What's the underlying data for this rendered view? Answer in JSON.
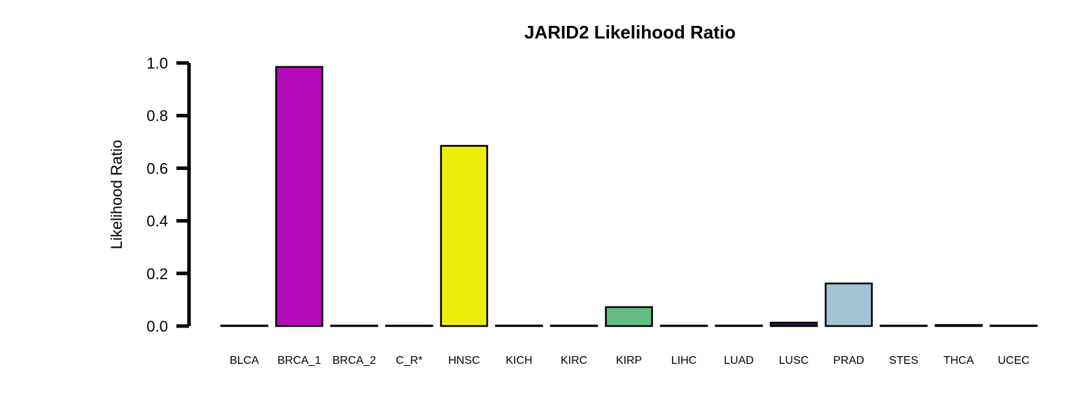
{
  "chart_data": {
    "type": "bar",
    "title": "JARID2 Likelihood Ratio",
    "xlabel": "",
    "ylabel": "Likelihood Ratio",
    "ylim": [
      0,
      1.0
    ],
    "yticks": [
      "0.0",
      "0.2",
      "0.4",
      "0.6",
      "0.8",
      "1.0"
    ],
    "grid": false,
    "legend": "none",
    "categories": [
      "BLCA",
      "BRCA_1",
      "BRCA_2",
      "C_R*",
      "HNSC",
      "KICH",
      "KIRC",
      "KIRP",
      "LIHC",
      "LUAD",
      "LUSC",
      "PRAD",
      "STES",
      "THCA",
      "UCEC"
    ],
    "values": [
      0.002,
      0.985,
      0.001,
      0.001,
      0.685,
      0.002,
      0.002,
      0.072,
      0.001,
      0.002,
      0.013,
      0.162,
      0.001,
      0.004,
      0.002
    ],
    "colors": [
      "#ffffff",
      "#b50ab9",
      "#ffffff",
      "#ffffff",
      "#eeee0a",
      "#ffffff",
      "#ffffff",
      "#62bc82",
      "#ffffff",
      "#ffffff",
      "#3b1a55",
      "#a0c4d4",
      "#ffffff",
      "#ffffff",
      "#ffffff"
    ]
  }
}
